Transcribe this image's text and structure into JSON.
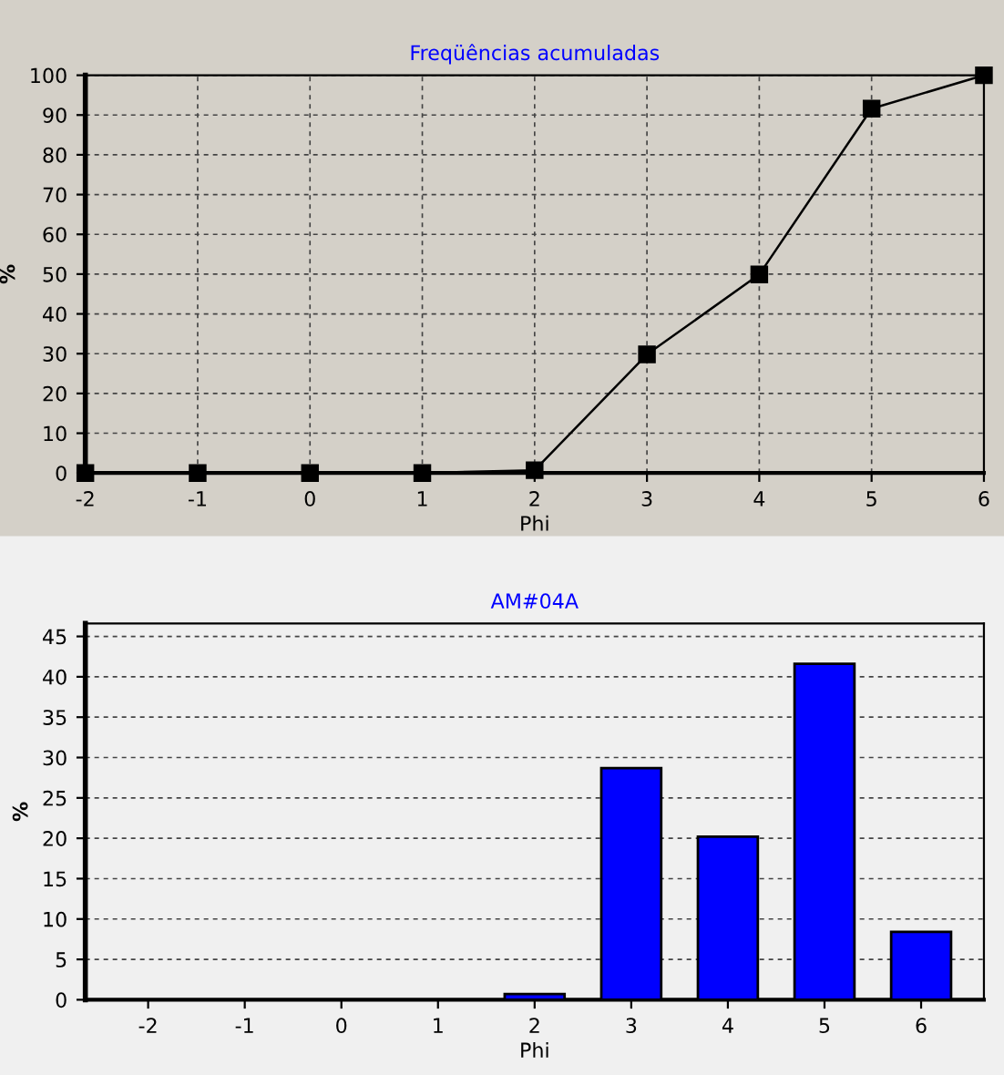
{
  "chart_data": [
    {
      "type": "line",
      "title": "Freqüências acumuladas",
      "xlabel": "Phi",
      "ylabel": "%",
      "x": [
        -2,
        -1,
        0,
        1,
        2,
        3,
        4,
        5,
        6
      ],
      "series": [
        {
          "color": "#000000",
          "values": [
            0,
            0,
            0,
            0,
            0.7,
            29.8,
            49.9,
            91.6,
            100
          ]
        }
      ],
      "xlim": [
        -2,
        6
      ],
      "xticks": [
        -2,
        -1,
        0,
        1,
        2,
        3,
        4,
        5,
        6
      ],
      "ylim": [
        0,
        100
      ],
      "yticks": [
        0,
        10,
        20,
        30,
        40,
        50,
        60,
        70,
        80,
        90,
        100
      ],
      "grid": true,
      "marker": "square",
      "line_style": "solid"
    },
    {
      "type": "bar",
      "title": "AM#04A",
      "xlabel": "Phi",
      "ylabel": "%",
      "categories": [
        "-2",
        "-1",
        "0",
        "1",
        "2",
        "3",
        "4",
        "5",
        "6"
      ],
      "series": [
        {
          "color": "#0000ff",
          "values": [
            0,
            0,
            0,
            0,
            0.7,
            28.7,
            20.2,
            41.6,
            8.4
          ]
        }
      ],
      "ylim": [
        0,
        46.6
      ],
      "yticks": [
        0,
        5,
        10,
        15,
        20,
        25,
        30,
        35,
        40,
        45
      ],
      "grid": "y"
    }
  ]
}
